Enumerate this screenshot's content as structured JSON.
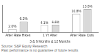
{
  "chart_data": {
    "type": "bar",
    "categories": [
      "After Rate Hikes",
      "1 Yr After",
      "After Rate Cuts"
    ],
    "x_label": "3 & 6 Months & 12 Months",
    "series": [
      {
        "color": "#ffffff",
        "values": [
          2.0,
          4.1,
          10.8
        ],
        "value_labels": [
          "2.0%",
          "4.1%",
          "10.8%"
        ]
      },
      {
        "color": "#d9d9d9",
        "values": [
          6.2,
          4.4,
          13.6
        ],
        "value_labels": [
          "6.2%",
          "4.4%",
          "13.6%"
        ]
      }
    ],
    "ylim": [
      0,
      16
    ],
    "grid": false,
    "data_labels": true,
    "tick_labels": "x",
    "notes": [
      "Source: S&P Equity Research",
      "Past performance is no guarantee of future results"
    ]
  }
}
